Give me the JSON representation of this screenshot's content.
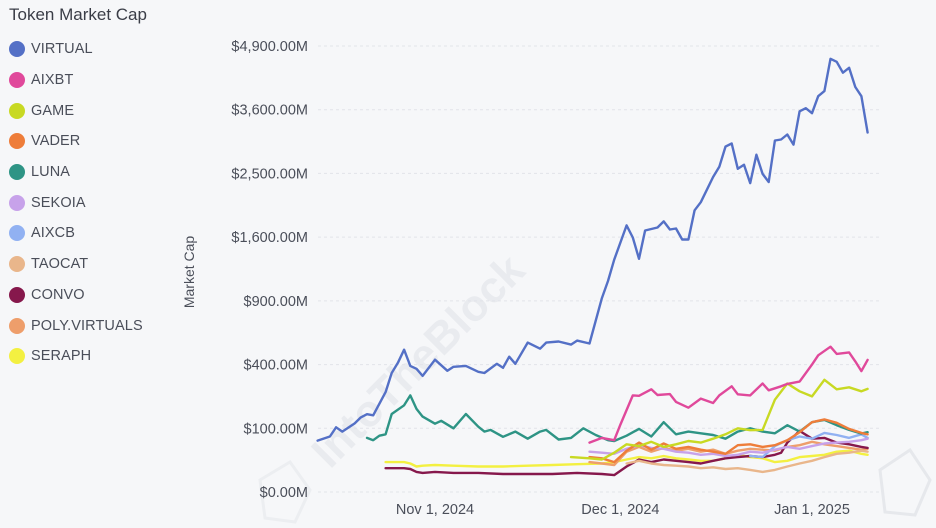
{
  "watermark": "IntoTheBlock",
  "chart_data": {
    "type": "line",
    "title": "Token Market Cap",
    "xlabel": "",
    "ylabel": "Market Cap",
    "y_scale": "sqrt",
    "ylim": [
      0,
      4900
    ],
    "y_unit": "USD millions",
    "y_ticks": [
      0,
      100,
      400,
      900,
      1600,
      2500,
      3600,
      4900
    ],
    "y_tick_labels": [
      "$0.00M",
      "$100.00M",
      "$400.00M",
      "$900.00M",
      "$1,600.00M",
      "$2,500.00M",
      "$3,600.00M",
      "$4,900.00M"
    ],
    "x_ticks": [
      "2024-11-01",
      "2024-12-01",
      "2025-01-01"
    ],
    "x_tick_labels": [
      "Nov 1, 2024",
      "Dec 1, 2024",
      "Jan 1, 2025"
    ],
    "xlim": [
      "2024-10-13",
      "2025-01-11"
    ],
    "grid": true,
    "legend_position": "left",
    "series": [
      {
        "name": "VIRTUAL",
        "color": "#5470c6",
        "x": [
          "2024-10-13",
          "2024-10-15",
          "2024-10-16",
          "2024-10-17",
          "2024-10-19",
          "2024-10-20",
          "2024-10-21",
          "2024-10-22",
          "2024-10-24",
          "2024-10-25",
          "2024-10-26",
          "2024-10-27",
          "2024-10-28",
          "2024-10-29",
          "2024-10-30",
          "2024-11-01",
          "2024-11-03",
          "2024-11-04",
          "2024-11-06",
          "2024-11-08",
          "2024-11-09",
          "2024-11-11",
          "2024-11-12",
          "2024-11-13",
          "2024-11-14",
          "2024-11-16",
          "2024-11-18",
          "2024-11-19",
          "2024-11-21",
          "2024-11-23",
          "2024-11-24",
          "2024-11-26",
          "2024-11-28",
          "2024-11-29",
          "2024-11-30",
          "2024-12-02",
          "2024-12-03",
          "2024-12-04",
          "2024-12-05",
          "2024-12-07",
          "2024-12-08",
          "2024-12-09",
          "2024-12-10",
          "2024-12-11",
          "2024-12-12",
          "2024-12-13",
          "2024-12-14",
          "2024-12-16",
          "2024-12-17",
          "2024-12-18",
          "2024-12-19",
          "2024-12-20",
          "2024-12-21",
          "2024-12-22",
          "2024-12-23",
          "2024-12-24",
          "2024-12-25",
          "2024-12-26",
          "2024-12-27",
          "2024-12-28",
          "2024-12-29",
          "2024-12-30",
          "2024-12-31",
          "2025-01-01",
          "2025-01-02",
          "2025-01-03",
          "2025-01-04",
          "2025-01-05",
          "2025-01-06",
          "2025-01-07",
          "2025-01-08",
          "2025-01-09",
          "2025-01-10"
        ],
        "values": [
          65,
          76,
          103,
          90,
          116,
          137,
          149,
          145,
          246,
          349,
          411,
          499,
          392,
          374,
          332,
          431,
          362,
          386,
          392,
          356,
          349,
          405,
          380,
          451,
          405,
          550,
          506,
          550,
          558,
          535,
          565,
          543,
          926,
          1097,
          1329,
          1751,
          1595,
          1340,
          1685,
          1724,
          1804,
          1698,
          1711,
          1570,
          1570,
          1955,
          2069,
          2445,
          2605,
          2938,
          2991,
          2573,
          2637,
          2351,
          2802,
          2493,
          2367,
          3044,
          3060,
          3148,
          2973,
          3571,
          3628,
          3534,
          3860,
          3960,
          4622,
          4558,
          4330,
          4433,
          4040,
          3860,
          3183
        ]
      },
      {
        "name": "AIXBT",
        "color": "#e0499b",
        "x": [
          "2024-11-26",
          "2024-11-28",
          "2024-11-30",
          "2024-12-01",
          "2024-12-03",
          "2024-12-04",
          "2024-12-06",
          "2024-12-07",
          "2024-12-09",
          "2024-12-10",
          "2024-12-12",
          "2024-12-14",
          "2024-12-16",
          "2024-12-17",
          "2024-12-19",
          "2024-12-20",
          "2024-12-22",
          "2024-12-24",
          "2024-12-25",
          "2024-12-27",
          "2024-12-28",
          "2024-12-30",
          "2025-01-01",
          "2025-01-02",
          "2025-01-04",
          "2025-01-05",
          "2025-01-07",
          "2025-01-08",
          "2025-01-09",
          "2025-01-10"
        ],
        "values": [
          60,
          72,
          66,
          112,
          230,
          228,
          260,
          232,
          236,
          200,
          175,
          215,
          195,
          230,
          275,
          235,
          230,
          290,
          255,
          275,
          288,
          300,
          400,
          460,
          520,
          470,
          480,
          420,
          360,
          430
        ]
      },
      {
        "name": "GAME",
        "color": "#c8d923",
        "x": [
          "2024-11-23",
          "2024-11-26",
          "2024-11-28",
          "2024-11-30",
          "2024-12-02",
          "2024-12-04",
          "2024-12-06",
          "2024-12-08",
          "2024-12-10",
          "2024-12-12",
          "2024-12-14",
          "2024-12-16",
          "2024-12-18",
          "2024-12-20",
          "2024-12-22",
          "2024-12-24",
          "2024-12-26",
          "2024-12-28",
          "2024-12-30",
          "2025-01-01",
          "2025-01-03",
          "2025-01-05",
          "2025-01-07",
          "2025-01-09",
          "2025-01-10"
        ],
        "values": [
          30,
          28,
          26,
          38,
          56,
          52,
          62,
          50,
          56,
          64,
          60,
          70,
          82,
          100,
          94,
          95,
          210,
          290,
          250,
          225,
          310,
          260,
          270,
          250,
          262
        ]
      },
      {
        "name": "VADER",
        "color": "#ee7d3a",
        "x": [
          "2024-11-26",
          "2024-11-28",
          "2024-11-30",
          "2024-12-02",
          "2024-12-04",
          "2024-12-06",
          "2024-12-08",
          "2024-12-10",
          "2024-12-12",
          "2024-12-14",
          "2024-12-16",
          "2024-12-18",
          "2024-12-20",
          "2024-12-22",
          "2024-12-24",
          "2024-12-26",
          "2024-12-28",
          "2024-12-30",
          "2025-01-01",
          "2025-01-03",
          "2025-01-05",
          "2025-01-07",
          "2025-01-09",
          "2025-01-10"
        ],
        "values": [
          30,
          28,
          22,
          42,
          60,
          44,
          58,
          46,
          50,
          44,
          40,
          36,
          54,
          56,
          50,
          54,
          66,
          88,
          120,
          130,
          118,
          98,
          86,
          82
        ]
      },
      {
        "name": "LUNA",
        "color": "#2e9485",
        "x": [
          "2024-10-21",
          "2024-10-22",
          "2024-10-23",
          "2024-10-24",
          "2024-10-25",
          "2024-10-27",
          "2024-10-28",
          "2024-10-29",
          "2024-10-30",
          "2024-11-01",
          "2024-11-02",
          "2024-11-04",
          "2024-11-06",
          "2024-11-08",
          "2024-11-09",
          "2024-11-10",
          "2024-11-12",
          "2024-11-14",
          "2024-11-16",
          "2024-11-18",
          "2024-11-19",
          "2024-11-21",
          "2024-11-23",
          "2024-11-25",
          "2024-11-27",
          "2024-11-29",
          "2024-11-30",
          "2024-12-02",
          "2024-12-04",
          "2024-12-06",
          "2024-12-08",
          "2024-12-10",
          "2024-12-12",
          "2024-12-14",
          "2024-12-16",
          "2024-12-18",
          "2024-12-20",
          "2024-12-22",
          "2024-12-24",
          "2024-12-26",
          "2024-12-28",
          "2024-12-30",
          "2025-01-01",
          "2025-01-03",
          "2025-01-05",
          "2025-01-07",
          "2025-01-09",
          "2025-01-10"
        ],
        "values": [
          72,
          66,
          78,
          82,
          150,
          185,
          230,
          170,
          140,
          115,
          125,
          100,
          150,
          105,
          90,
          95,
          75,
          90,
          70,
          90,
          95,
          68,
          72,
          100,
          80,
          66,
          64,
          78,
          98,
          76,
          120,
          82,
          90,
          85,
          80,
          70,
          90,
          100,
          90,
          85,
          110,
          90,
          120,
          128,
          110,
          95,
          84,
          88
        ]
      },
      {
        "name": "SEKOIA",
        "color": "#c7a2ea",
        "x": [
          "2024-11-26",
          "2024-11-28",
          "2024-11-30",
          "2024-12-02",
          "2024-12-04",
          "2024-12-06",
          "2024-12-08",
          "2024-12-10",
          "2024-12-12",
          "2024-12-14",
          "2024-12-16",
          "2024-12-18",
          "2024-12-20",
          "2024-12-22",
          "2024-12-24",
          "2024-12-26",
          "2024-12-28",
          "2024-12-30",
          "2025-01-01",
          "2025-01-03",
          "2025-01-05",
          "2025-01-07",
          "2025-01-09",
          "2025-01-10"
        ],
        "values": [
          40,
          38,
          36,
          46,
          54,
          48,
          46,
          40,
          38,
          34,
          36,
          32,
          34,
          40,
          38,
          44,
          50,
          46,
          52,
          58,
          60,
          62,
          66,
          70
        ]
      },
      {
        "name": "AIXCB",
        "color": "#91b1f2",
        "x": [
          "2024-12-22",
          "2024-12-24",
          "2024-12-26",
          "2024-12-28",
          "2024-12-30",
          "2025-01-01",
          "2025-01-03",
          "2025-01-05",
          "2025-01-07",
          "2025-01-09",
          "2025-01-10"
        ],
        "values": [
          32,
          30,
          52,
          66,
          76,
          70,
          86,
          80,
          72,
          82,
          72
        ]
      },
      {
        "name": "TAOCAT",
        "color": "#e9b68b",
        "x": [
          "2024-12-02",
          "2024-12-04",
          "2024-12-06",
          "2024-12-08",
          "2024-12-10",
          "2024-12-12",
          "2024-12-14",
          "2024-12-16",
          "2024-12-18",
          "2024-12-20",
          "2024-12-22",
          "2024-12-24",
          "2024-12-26",
          "2024-12-28",
          "2024-12-30",
          "2025-01-01",
          "2025-01-03",
          "2025-01-05",
          "2025-01-07",
          "2025-01-09",
          "2025-01-10"
        ],
        "values": [
          20,
          24,
          20,
          18,
          17,
          16,
          14,
          15,
          13,
          14,
          12,
          10,
          12,
          16,
          20,
          24,
          30,
          36,
          38,
          42,
          40
        ]
      },
      {
        "name": "CONVO",
        "color": "#86184c",
        "x": [
          "2024-10-24",
          "2024-10-27",
          "2024-10-28",
          "2024-10-29",
          "2024-10-30",
          "2024-11-01",
          "2024-11-04",
          "2024-11-08",
          "2024-11-12",
          "2024-11-16",
          "2024-11-20",
          "2024-11-24",
          "2024-11-28",
          "2024-11-30",
          "2024-12-02",
          "2024-12-04",
          "2024-12-06",
          "2024-12-08",
          "2024-12-10",
          "2024-12-12",
          "2024-12-14",
          "2024-12-16",
          "2024-12-18",
          "2024-12-20",
          "2024-12-22",
          "2024-12-24",
          "2024-12-26",
          "2024-12-27",
          "2024-12-28",
          "2024-12-30",
          "2025-01-01",
          "2025-01-03",
          "2025-01-05",
          "2025-01-07",
          "2025-01-09",
          "2025-01-10"
        ],
        "values": [
          14,
          14,
          13,
          10,
          9,
          10,
          9,
          9,
          8,
          8,
          8,
          9,
          8,
          7,
          16,
          26,
          22,
          26,
          24,
          22,
          20,
          24,
          28,
          30,
          32,
          30,
          34,
          38,
          60,
          92,
          70,
          72,
          60,
          56,
          50,
          48
        ]
      },
      {
        "name": "POLY.VIRTUALS",
        "color": "#ee9e6b",
        "x": [
          "2024-11-26",
          "2024-11-28",
          "2024-11-30",
          "2024-12-02",
          "2024-12-04",
          "2024-12-06",
          "2024-12-08",
          "2024-12-10",
          "2024-12-12",
          "2024-12-14",
          "2024-12-16",
          "2024-12-18",
          "2024-12-20",
          "2024-12-22",
          "2024-12-24",
          "2024-12-26",
          "2024-12-28",
          "2024-12-30",
          "2025-01-01",
          "2025-01-03",
          "2025-01-05",
          "2025-01-07",
          "2025-01-09",
          "2025-01-10"
        ],
        "values": [
          22,
          20,
          18,
          40,
          50,
          40,
          48,
          42,
          46,
          40,
          44,
          36,
          42,
          46,
          44,
          42,
          50,
          54,
          62,
          56,
          52,
          48,
          44,
          46
        ]
      },
      {
        "name": "SERAPH",
        "color": "#f3f041",
        "x": [
          "2024-10-24",
          "2024-10-27",
          "2024-10-28",
          "2024-10-29",
          "2024-10-30",
          "2024-11-01",
          "2024-11-04",
          "2024-11-08",
          "2024-11-12",
          "2024-11-16",
          "2024-11-20",
          "2024-11-24",
          "2024-11-28",
          "2024-11-30",
          "2024-12-02",
          "2024-12-04",
          "2024-12-06",
          "2024-12-08",
          "2024-12-10",
          "2024-12-12",
          "2024-12-14",
          "2024-12-16",
          "2024-12-18",
          "2024-12-20",
          "2024-12-22",
          "2024-12-24",
          "2024-12-26",
          "2024-12-28",
          "2024-12-30",
          "2025-01-01",
          "2025-01-03",
          "2025-01-05",
          "2025-01-07",
          "2025-01-09",
          "2025-01-10"
        ],
        "values": [
          22,
          22,
          20,
          16,
          17,
          18,
          17,
          16,
          16,
          17,
          18,
          19,
          20,
          22,
          26,
          30,
          28,
          32,
          28,
          26,
          24,
          24,
          28,
          34,
          30,
          28,
          22,
          24,
          30,
          32,
          34,
          40,
          42,
          36,
          34
        ]
      }
    ]
  }
}
